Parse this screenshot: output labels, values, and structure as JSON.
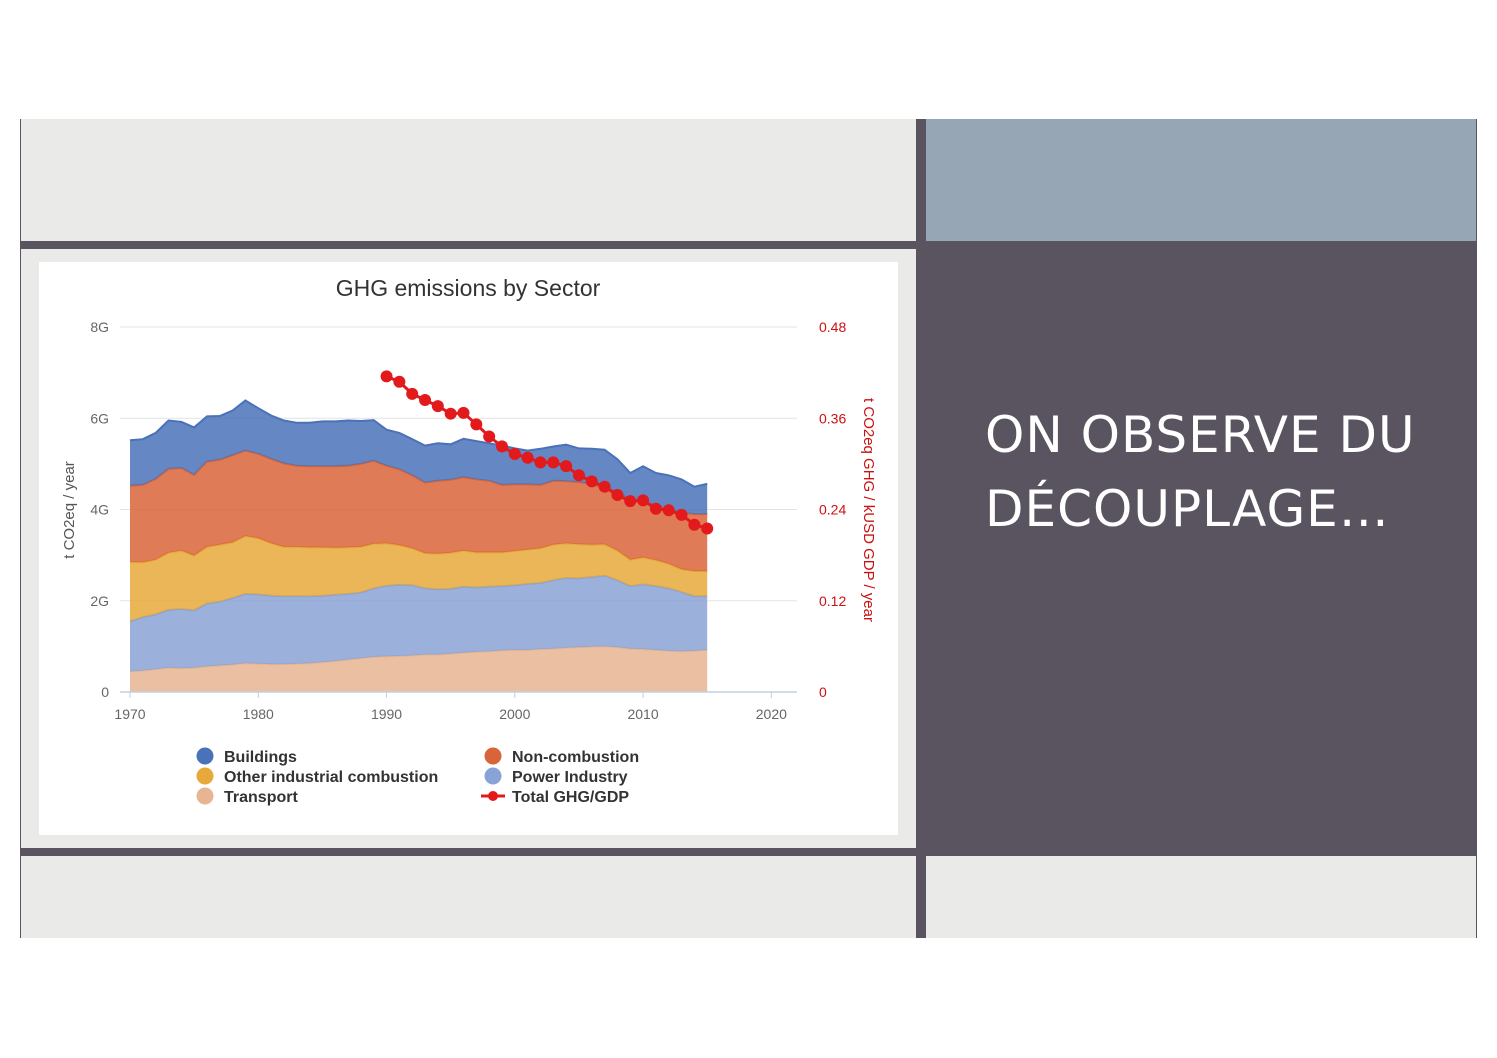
{
  "slide": {
    "title": "ON OBSERVE DU DÉCOUPLAGE…",
    "colors": {
      "background": "#5a5461",
      "light_panel": "#eaebe8",
      "accent_panel": "#97a6b5"
    }
  },
  "chart_data": {
    "type": "area",
    "stacked": true,
    "title": "GHG emissions by Sector",
    "xlabel": "",
    "ylabel": "t CO2eq / year",
    "y2label": "t CO2eq GHG / kUSD GDP / year",
    "xlim": [
      1970,
      2022
    ],
    "ylim": [
      0,
      8000000000
    ],
    "y2lim": [
      0,
      0.48
    ],
    "x_ticks": [
      "1970",
      "1980",
      "1990",
      "2000",
      "2010",
      "2020"
    ],
    "y_ticks": [
      "0",
      "2G",
      "4G",
      "6G",
      "8G"
    ],
    "y2_ticks": [
      "0",
      "0.12",
      "0.24",
      "0.36",
      "0.48"
    ],
    "grid": true,
    "legend_position": "bottom",
    "legend": [
      {
        "name": "Buildings",
        "color": "#4a72b8",
        "marker": "dot"
      },
      {
        "name": "Non-combustion",
        "color": "#d9643a",
        "marker": "dot"
      },
      {
        "name": "Other industrial combustion",
        "color": "#e6a93a",
        "marker": "dot"
      },
      {
        "name": "Power Industry",
        "color": "#89a3d6",
        "marker": "dot"
      },
      {
        "name": "Transport",
        "color": "#e8b592",
        "marker": "dot"
      },
      {
        "name": "Total GHG/GDP",
        "color": "#e31a1c",
        "marker": "line-dot"
      }
    ],
    "x": [
      1970,
      1971,
      1972,
      1973,
      1974,
      1975,
      1976,
      1977,
      1978,
      1979,
      1980,
      1981,
      1982,
      1983,
      1984,
      1985,
      1986,
      1987,
      1988,
      1989,
      1990,
      1991,
      1992,
      1993,
      1994,
      1995,
      1996,
      1997,
      1998,
      1999,
      2000,
      2001,
      2002,
      2003,
      2004,
      2005,
      2006,
      2007,
      2008,
      2009,
      2010,
      2011,
      2012,
      2013,
      2014,
      2015
    ],
    "series": [
      {
        "name": "Transport",
        "color": "#e8b592",
        "values": [
          0.45,
          0.47,
          0.5,
          0.53,
          0.52,
          0.53,
          0.56,
          0.58,
          0.6,
          0.63,
          0.62,
          0.61,
          0.61,
          0.62,
          0.63,
          0.65,
          0.68,
          0.71,
          0.74,
          0.77,
          0.78,
          0.79,
          0.8,
          0.82,
          0.82,
          0.84,
          0.86,
          0.88,
          0.89,
          0.91,
          0.92,
          0.92,
          0.94,
          0.95,
          0.97,
          0.98,
          0.99,
          1.0,
          0.98,
          0.95,
          0.94,
          0.92,
          0.9,
          0.89,
          0.9,
          0.92
        ]
      },
      {
        "name": "Power Industry",
        "color": "#89a3d6",
        "values": [
          1.1,
          1.17,
          1.2,
          1.27,
          1.3,
          1.26,
          1.38,
          1.4,
          1.46,
          1.52,
          1.52,
          1.5,
          1.49,
          1.48,
          1.47,
          1.46,
          1.45,
          1.44,
          1.44,
          1.5,
          1.55,
          1.56,
          1.54,
          1.45,
          1.43,
          1.42,
          1.45,
          1.41,
          1.42,
          1.41,
          1.42,
          1.45,
          1.45,
          1.5,
          1.53,
          1.51,
          1.53,
          1.55,
          1.47,
          1.37,
          1.42,
          1.4,
          1.37,
          1.3,
          1.2,
          1.18
        ]
      },
      {
        "name": "Other industrial combustion",
        "color": "#e6a93a",
        "values": [
          1.3,
          1.2,
          1.2,
          1.25,
          1.28,
          1.2,
          1.24,
          1.25,
          1.22,
          1.27,
          1.23,
          1.15,
          1.08,
          1.08,
          1.07,
          1.06,
          1.03,
          1.02,
          1.0,
          0.98,
          0.93,
          0.87,
          0.81,
          0.77,
          0.78,
          0.79,
          0.79,
          0.77,
          0.75,
          0.74,
          0.75,
          0.75,
          0.76,
          0.78,
          0.76,
          0.75,
          0.71,
          0.69,
          0.65,
          0.58,
          0.59,
          0.57,
          0.54,
          0.5,
          0.55,
          0.55
        ]
      },
      {
        "name": "Non-combustion",
        "color": "#d9643a",
        "values": [
          1.67,
          1.7,
          1.77,
          1.84,
          1.81,
          1.77,
          1.87,
          1.86,
          1.91,
          1.87,
          1.85,
          1.85,
          1.83,
          1.78,
          1.78,
          1.78,
          1.79,
          1.79,
          1.82,
          1.82,
          1.7,
          1.66,
          1.6,
          1.55,
          1.6,
          1.6,
          1.61,
          1.6,
          1.57,
          1.48,
          1.46,
          1.43,
          1.39,
          1.4,
          1.36,
          1.36,
          1.33,
          1.22,
          1.3,
          1.3,
          1.22,
          1.2,
          1.19,
          1.24,
          1.25,
          1.25
        ]
      },
      {
        "name": "Buildings",
        "color": "#4a72b8",
        "values": [
          1.0,
          1.0,
          1.01,
          1.06,
          1.01,
          1.04,
          0.99,
          0.96,
          0.98,
          1.1,
          1.0,
          0.95,
          0.94,
          0.94,
          0.95,
          0.98,
          0.98,
          0.99,
          0.94,
          0.89,
          0.79,
          0.8,
          0.79,
          0.81,
          0.82,
          0.78,
          0.84,
          0.84,
          0.82,
          0.86,
          0.79,
          0.74,
          0.79,
          0.75,
          0.8,
          0.74,
          0.77,
          0.85,
          0.7,
          0.6,
          0.78,
          0.71,
          0.75,
          0.73,
          0.6,
          0.66
        ]
      }
    ],
    "series_units": "G t CO2eq / year",
    "intensity_series": {
      "name": "Total GHG/GDP",
      "color": "#e31a1c",
      "axis": "right",
      "x": [
        1990,
        1991,
        1992,
        1993,
        1994,
        1995,
        1996,
        1997,
        1998,
        1999,
        2000,
        2001,
        2002,
        2003,
        2004,
        2005,
        2006,
        2007,
        2008,
        2009,
        2010,
        2011,
        2012,
        2013,
        2014,
        2015
      ],
      "values": [
        0.415,
        0.408,
        0.392,
        0.384,
        0.376,
        0.366,
        0.367,
        0.352,
        0.336,
        0.323,
        0.313,
        0.308,
        0.302,
        0.302,
        0.297,
        0.285,
        0.277,
        0.27,
        0.259,
        0.251,
        0.252,
        0.241,
        0.239,
        0.233,
        0.22,
        0.215
      ]
    }
  }
}
